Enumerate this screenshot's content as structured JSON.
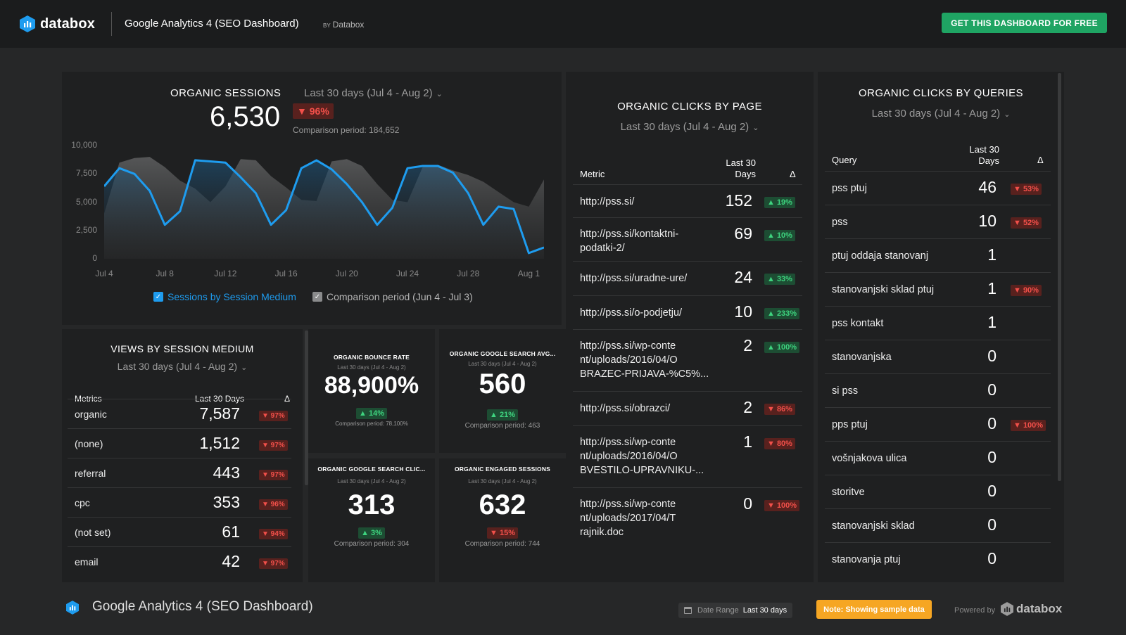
{
  "header": {
    "brand": "databox",
    "dashboard_title": "Google Analytics 4 (SEO Dashboard)",
    "by_prefix": "BY",
    "by_name": "Databox",
    "cta_label": "GET THIS DASHBOARD FOR FREE"
  },
  "sessions": {
    "title": "ORGANIC SESSIONS",
    "range": "Last 30 days (Jul 4 - Aug 2)",
    "value": "6,530",
    "change": "▼ 96%",
    "comparison": "Comparison period: 184,652",
    "legend_current": "Sessions by Session Medium",
    "legend_comparison": "Comparison period (Jun 4 - Jul 3)"
  },
  "chart_data": {
    "type": "area",
    "x": [
      "Jul 4",
      "Jul 5",
      "Jul 6",
      "Jul 7",
      "Jul 8",
      "Jul 9",
      "Jul 10",
      "Jul 11",
      "Jul 12",
      "Jul 13",
      "Jul 14",
      "Jul 15",
      "Jul 16",
      "Jul 17",
      "Jul 18",
      "Jul 19",
      "Jul 20",
      "Jul 21",
      "Jul 22",
      "Jul 23",
      "Jul 24",
      "Jul 25",
      "Jul 26",
      "Jul 27",
      "Jul 28",
      "Jul 29",
      "Jul 30",
      "Jul 31",
      "Aug 1",
      "Aug 2"
    ],
    "x_tick_labels": [
      "Jul 4",
      "Jul 8",
      "Jul 12",
      "Jul 16",
      "Jul 20",
      "Jul 24",
      "Jul 28",
      "Aug 1"
    ],
    "y_tick_labels": [
      "10,000",
      "7,500",
      "5,000",
      "2,500",
      "0"
    ],
    "ylim": [
      0,
      10000
    ],
    "grid": false,
    "legend_position": "bottom",
    "series": [
      {
        "name": "Sessions by Session Medium",
        "color": "#1e9cef",
        "values": [
          6400,
          8000,
          7500,
          6000,
          3000,
          4200,
          8700,
          8600,
          8500,
          7200,
          5800,
          3000,
          4300,
          8000,
          8700,
          7900,
          6600,
          5000,
          3000,
          4500,
          8000,
          8200,
          8200,
          7600,
          5800,
          3000,
          4600,
          4400,
          500,
          1000
        ]
      },
      {
        "name": "Comparison period (Jun 4 - Jul 3)",
        "color": "#5a5b5c",
        "values": [
          4000,
          8500,
          8900,
          9000,
          8100,
          6900,
          6200,
          5000,
          6400,
          8800,
          8700,
          7300,
          6300,
          5200,
          5100,
          8600,
          8800,
          8200,
          6600,
          5200,
          5000,
          8100,
          8300,
          7800,
          7400,
          6800,
          5900,
          5000,
          4600,
          7000
        ]
      }
    ]
  },
  "views": {
    "title": "VIEWS BY SESSION MEDIUM",
    "range": "Last 30 days (Jul 4 - Aug 2)",
    "col_metric": "Metrics",
    "col_value": "Last 30 Days",
    "col_delta": "Δ",
    "rows": [
      {
        "label": "organic",
        "value": "7,587",
        "change": "▼ 97%"
      },
      {
        "label": "(none)",
        "value": "1,512",
        "change": "▼ 97%"
      },
      {
        "label": "referral",
        "value": "443",
        "change": "▼ 97%"
      },
      {
        "label": "cpc",
        "value": "353",
        "change": "▼ 96%"
      },
      {
        "label": "(not set)",
        "value": "61",
        "change": "▼ 94%"
      },
      {
        "label": "email",
        "value": "42",
        "change": "▼ 97%"
      }
    ]
  },
  "kpis": [
    {
      "title": "ORGANIC BOUNCE RATE",
      "range": "Last 30 days (Jul 4 - Aug 2)",
      "value": "88,900%",
      "change": "▲ 14%",
      "direction": "up",
      "comparison": "Comparison period: 78,100%"
    },
    {
      "title": "ORGANIC GOOGLE SEARCH AVG...",
      "range": "Last 30 days (Jul 4 - Aug 2)",
      "value": "560",
      "change": "▲ 21%",
      "direction": "up",
      "comparison": "Comparison period: 463"
    },
    {
      "title": "ORGANIC GOOGLE SEARCH CLIC...",
      "range": "Last 30 days (Jul 4 - Aug 2)",
      "value": "313",
      "change": "▲ 3%",
      "direction": "up",
      "comparison": "Comparison period: 304"
    },
    {
      "title": "ORGANIC ENGAGED SESSIONS",
      "range": "Last 30 days (Jul 4 - Aug 2)",
      "value": "632",
      "change": "▼ 15%",
      "direction": "down",
      "comparison": "Comparison period: 744"
    }
  ],
  "by_page": {
    "title": "ORGANIC CLICKS BY PAGE",
    "range": "Last 30 days (Jul 4 - Aug 2)",
    "col_metric": "Metric",
    "col_value_1": "Last 30",
    "col_value_2": "Days",
    "col_delta": "Δ",
    "rows": [
      {
        "label": "http://pss.si/",
        "value": "152",
        "change": "▲ 19%",
        "direction": "up"
      },
      {
        "label": "http://pss.si/kontaktni-\npodatki-2/",
        "value": "69",
        "change": "▲ 10%",
        "direction": "up"
      },
      {
        "label": "http://pss.si/uradne-ure/",
        "value": "24",
        "change": "▲ 33%",
        "direction": "up"
      },
      {
        "label": "http://pss.si/o-podjetju/",
        "value": "10",
        "change": "▲ 233%",
        "direction": "up"
      },
      {
        "label": "http://pss.si/wp-conte\nnt/uploads/2016/04/O\nBRAZEC-PRIJAVA-%C5%...",
        "value": "2",
        "change": "▲ 100%",
        "direction": "up"
      },
      {
        "label": "http://pss.si/obrazci/",
        "value": "2",
        "change": "▼ 86%",
        "direction": "down"
      },
      {
        "label": "http://pss.si/wp-conte\nnt/uploads/2016/04/O\nBVESTILO-UPRAVNIKU-...",
        "value": "1",
        "change": "▼ 80%",
        "direction": "down"
      },
      {
        "label": "http://pss.si/wp-conte\nnt/uploads/2017/04/T\nrajnik.doc",
        "value": "0",
        "change": "▼ 100%",
        "direction": "down"
      }
    ]
  },
  "by_query": {
    "title": "ORGANIC CLICKS BY QUERIES",
    "range": "Last 30 days (Jul 4 - Aug 2)",
    "col_metric": "Query",
    "col_value_1": "Last 30",
    "col_value_2": "Days",
    "col_delta": "Δ",
    "rows": [
      {
        "label": "pss ptuj",
        "value": "46",
        "change": "▼ 53%",
        "direction": "down"
      },
      {
        "label": "pss",
        "value": "10",
        "change": "▼ 52%",
        "direction": "down"
      },
      {
        "label": "ptuj oddaja stanovanj",
        "value": "1",
        "change": "",
        "direction": ""
      },
      {
        "label": "stanovanjski sklad ptuj",
        "value": "1",
        "change": "▼ 90%",
        "direction": "down"
      },
      {
        "label": "pss kontakt",
        "value": "1",
        "change": "",
        "direction": ""
      },
      {
        "label": "stanovanjska",
        "value": "0",
        "change": "",
        "direction": ""
      },
      {
        "label": "si pss",
        "value": "0",
        "change": "",
        "direction": ""
      },
      {
        "label": "pps ptuj",
        "value": "0",
        "change": "▼ 100%",
        "direction": "down"
      },
      {
        "label": "vošnjakova ulica",
        "value": "0",
        "change": "",
        "direction": ""
      },
      {
        "label": "storitve",
        "value": "0",
        "change": "",
        "direction": ""
      },
      {
        "label": "stanovanjski sklad",
        "value": "0",
        "change": "",
        "direction": ""
      },
      {
        "label": "stanovanja ptuj",
        "value": "0",
        "change": "",
        "direction": ""
      }
    ]
  },
  "footer": {
    "title": "Google Analytics 4 (SEO Dashboard)",
    "date_range_label": "Date Range",
    "date_range_value": "Last 30 days",
    "note": "Note: Showing sample data",
    "powered_by": "Powered by",
    "brand": "databox"
  },
  "colors": {
    "accent_blue": "#1e9cef",
    "up_green": "#3ed47f",
    "down_red": "#f2504a",
    "cta_green": "#1fa463",
    "note_orange": "#f6a623"
  }
}
